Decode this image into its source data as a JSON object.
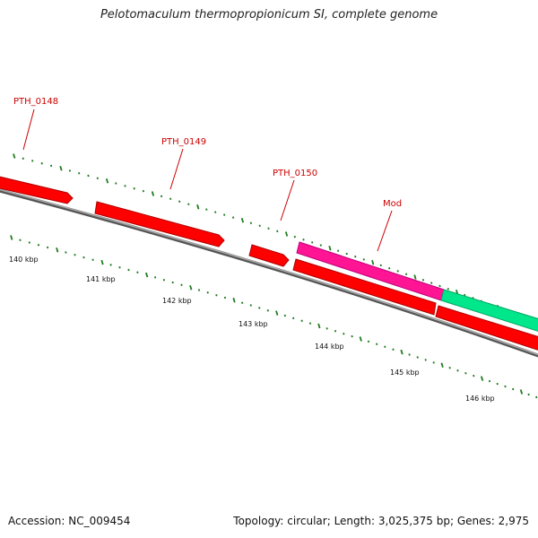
{
  "title": "Pelotomaculum thermopropionicum SI, complete genome",
  "colors": {
    "gene_red": "#ff0000",
    "gene_red_dark": "#cc0000",
    "gene_magenta": "#ff1493",
    "gene_green": "#00e68a",
    "backbone": "#777777",
    "tick": "#1e7b1e",
    "label_red": "#cc0000"
  },
  "genes": [
    {
      "label": "PTH_0148",
      "color": "#ff0000",
      "strand": "+"
    },
    {
      "label": "PTH_0149",
      "color": "#ff0000",
      "strand": "+"
    },
    {
      "label": "PTH_0150",
      "color": "#ff0000",
      "strand": "+"
    },
    {
      "label": "Mod",
      "color": "#ff1493",
      "strand": "+"
    },
    {
      "label": "",
      "color": "#00e68a",
      "strand": "+"
    },
    {
      "label": "",
      "color": "#ff0000",
      "strand": "-"
    },
    {
      "label": "",
      "color": "#ff0000",
      "strand": "-"
    }
  ],
  "scale_labels": [
    "140 kbp",
    "141 kbp",
    "142 kbp",
    "143 kbp",
    "144 kbp",
    "145 kbp",
    "146 kbp"
  ],
  "footer": {
    "accession_label": "Accession:",
    "accession": "NC_009454",
    "topology_label": "Topology:",
    "topology": "circular;",
    "length_label": "Length:",
    "length": "3,025,375 bp;",
    "genes_label": "Genes:",
    "genes": "2,975"
  }
}
